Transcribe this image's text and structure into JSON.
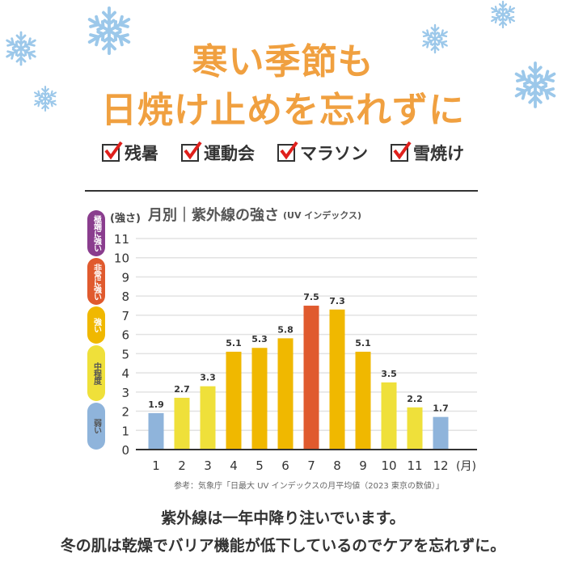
{
  "header": {
    "title_line1": "寒い季節も",
    "title_line2": "日焼け止めを忘れずに",
    "title_color": "#f0a040",
    "checks": [
      "残暑",
      "運動会",
      "マラソン",
      "雪焼け"
    ],
    "check_color": "#e0201c",
    "snowflake_color": "#9cc8ea"
  },
  "bands": [
    {
      "label": "極端に強い",
      "color": "#8a3d8e",
      "text_color": "#ffffff"
    },
    {
      "label": "非常に強い",
      "color": "#e05a2e",
      "text_color": "#ffffff"
    },
    {
      "label": "強い",
      "color": "#f0b800",
      "text_color": "#ffffff"
    },
    {
      "label": "中程度",
      "color": "#efe03a",
      "text_color": "#555555"
    },
    {
      "label": "弱い",
      "color": "#8fb4db",
      "text_color": "#555555"
    }
  ],
  "chart_data": {
    "type": "bar",
    "title_main": "月別｜紫外線の強さ",
    "title_sub": "(UV インデックス)",
    "ylabel": "(強さ)",
    "xlabel": "(月)",
    "categories": [
      "1",
      "2",
      "3",
      "4",
      "5",
      "6",
      "7",
      "8",
      "9",
      "10",
      "11",
      "12"
    ],
    "values": [
      1.9,
      2.7,
      3.3,
      5.1,
      5.3,
      5.8,
      7.5,
      7.3,
      5.1,
      3.5,
      2.2,
      1.7
    ],
    "bar_colors": [
      "#8fb4db",
      "#efe03a",
      "#efe03a",
      "#f0b800",
      "#f0b800",
      "#f0b800",
      "#e05a2e",
      "#f0b800",
      "#f0b800",
      "#efe03a",
      "#efe03a",
      "#8fb4db"
    ],
    "ylim": [
      0,
      11
    ],
    "yticks": [
      0,
      1,
      2,
      3,
      4,
      5,
      6,
      7,
      8,
      9,
      10,
      11
    ],
    "grid": true,
    "source": "参考：気象庁「日最大 UV インデックスの月平均値（2023 東京の数値）」"
  },
  "footer": {
    "line1": "紫外線は一年中降り注いでいます。",
    "line2": "冬の肌は乾燥でバリア機能が低下しているのでケアを忘れずに。"
  }
}
